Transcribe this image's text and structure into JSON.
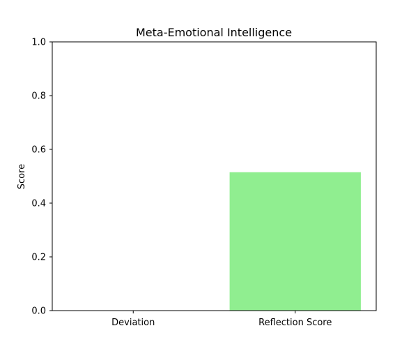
{
  "chart_data": {
    "type": "bar",
    "title": "Meta-Emotional Intelligence",
    "xlabel": "",
    "ylabel": "Score",
    "categories": [
      "Deviation",
      "Reflection Score"
    ],
    "values": [
      0.0,
      0.515
    ],
    "ylim": [
      0,
      1.0
    ],
    "yticks": [
      "0.0",
      "0.2",
      "0.4",
      "0.6",
      "0.8",
      "1.0"
    ],
    "bar_colors": [
      "#90ee90",
      "#90ee90"
    ],
    "grid": false,
    "legend": "none"
  }
}
